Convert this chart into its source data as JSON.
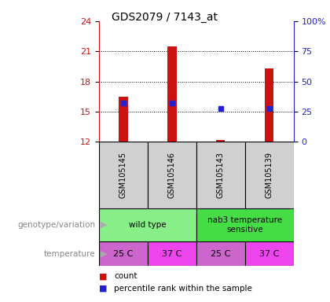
{
  "title": "GDS2079 / 7143_at",
  "samples": [
    "GSM105145",
    "GSM105146",
    "GSM105143",
    "GSM105139"
  ],
  "counts": [
    16.5,
    21.5,
    12.2,
    19.3
  ],
  "count_base": 12.0,
  "percentile_ranks": [
    32.0,
    32.0,
    27.5,
    27.5
  ],
  "ylim_left": [
    12,
    24
  ],
  "ylim_right": [
    0,
    100
  ],
  "yticks_left": [
    12,
    15,
    18,
    21,
    24
  ],
  "yticks_right": [
    0,
    25,
    50,
    75,
    100
  ],
  "bar_color": "#cc1111",
  "dot_color": "#2222cc",
  "plot_bg": "#ffffff",
  "genotype_groups": [
    {
      "label": "wild type",
      "cols": [
        0,
        1
      ],
      "color": "#88ee88"
    },
    {
      "label": "nab3 temperature\nsensitive",
      "cols": [
        2,
        3
      ],
      "color": "#44dd44"
    }
  ],
  "temperature_labels": [
    "25 C",
    "37 C",
    "25 C",
    "37 C"
  ],
  "temperature_colors": [
    "#cc66cc",
    "#ee44ee",
    "#cc66cc",
    "#ee44ee"
  ],
  "label_genotype": "genotype/variation",
  "label_temperature": "temperature",
  "legend_count": "count",
  "legend_percentile": "percentile rank within the sample",
  "bar_width": 0.18,
  "x_positions": [
    0,
    1,
    2,
    3
  ],
  "xlim": [
    -0.5,
    3.5
  ]
}
